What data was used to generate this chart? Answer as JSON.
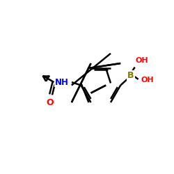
{
  "background_color": "#ffffff",
  "bond_color": "#000000",
  "oxygen_color": "#ff0000",
  "nitrogen_color": "#0000ff",
  "boron_color": "#808000",
  "line_width": 1.8,
  "figsize": [
    2.5,
    2.5
  ],
  "dpi": 100,
  "xlim": [
    0,
    10
  ],
  "ylim": [
    0,
    10
  ]
}
